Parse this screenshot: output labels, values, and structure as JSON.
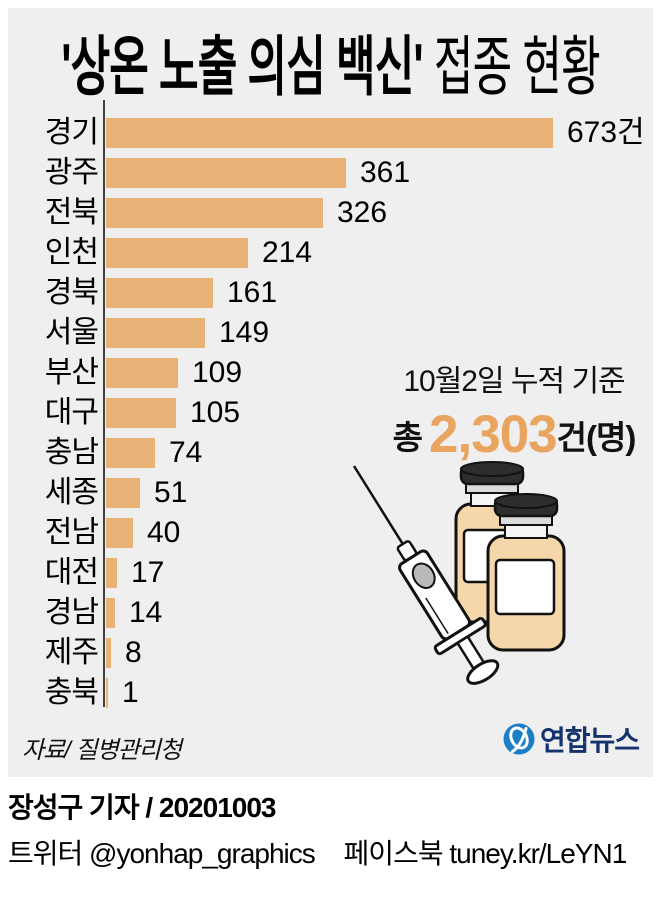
{
  "title": {
    "quoted": "'상온 노출 의심 백신'",
    "rest": " 접종 현황"
  },
  "chart_data": {
    "type": "bar",
    "orientation": "horizontal",
    "title": "'상온 노출 의심 백신' 접종 현황",
    "categories": [
      "경기",
      "광주",
      "전북",
      "인천",
      "경북",
      "서울",
      "부산",
      "대구",
      "충남",
      "세종",
      "전남",
      "대전",
      "경남",
      "제주",
      "충북"
    ],
    "values": [
      673,
      361,
      326,
      214,
      161,
      149,
      109,
      105,
      74,
      51,
      40,
      17,
      14,
      8,
      1
    ],
    "value_labels": [
      "673건",
      "361",
      "326",
      "214",
      "161",
      "149",
      "109",
      "105",
      "74",
      "51",
      "40",
      "17",
      "14",
      "8",
      "1"
    ],
    "xlim": [
      0,
      700
    ],
    "grid": false,
    "legend": false,
    "bar_color": "#e9b377"
  },
  "annotation": {
    "date_line": "10월2일 누적 기준",
    "total_prefix": "총",
    "total_value": "2,303",
    "total_suffix": "건(명)"
  },
  "source_note": "자료/ 질병관리청",
  "logo_text": "연합뉴스",
  "byline": "장성구 기자 / 20201003",
  "footer": {
    "twitter": "트위터 @yonhap_graphics",
    "facebook": "페이스북 tuney.kr/LeYN1"
  },
  "colors": {
    "panel": "#efefef",
    "bar": "#e9b377",
    "accent": "#e9a45f",
    "axis": "#404040",
    "logo_blue": "#1c7ec5",
    "logo_navy": "#14336e",
    "vial_fill": "#f6d7a9",
    "cap_dark": "#2d2d2d"
  }
}
